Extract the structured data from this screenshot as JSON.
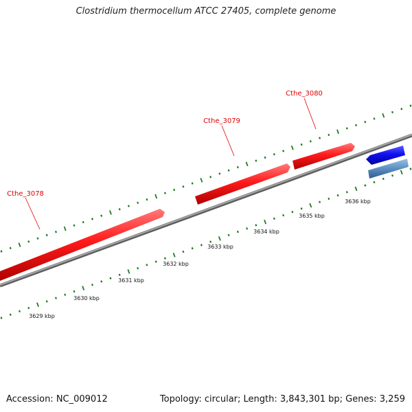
{
  "title": "Clostridium thermocellum ATCC 27405, complete genome",
  "footer": {
    "accession": "Accession: NC_009012",
    "summary": "Topology: circular; Length: 3,843,301 bp; Genes: 3,259"
  },
  "colors": {
    "forward_gene": "#ff1a1a",
    "reverse_gene_dark": "#1010f0",
    "reverse_gene_light": "#5b8fc2",
    "backbone": "#808080",
    "ticks": "#1e7a1e",
    "gene_label": "#e00000"
  },
  "genes": [
    {
      "name": "Cthe_3078",
      "strand": "+"
    },
    {
      "name": "Cthe_3079",
      "strand": "+"
    },
    {
      "name": "Cthe_3080",
      "strand": "+"
    },
    {
      "name": "",
      "strand": "-"
    },
    {
      "name": "",
      "strand": "-"
    }
  ],
  "kbp_labels": [
    "3629 kbp",
    "3630 kbp",
    "3631 kbp",
    "3632 kbp",
    "3633 kbp",
    "3634 kbp",
    "3635 kbp",
    "3636 kbp"
  ]
}
